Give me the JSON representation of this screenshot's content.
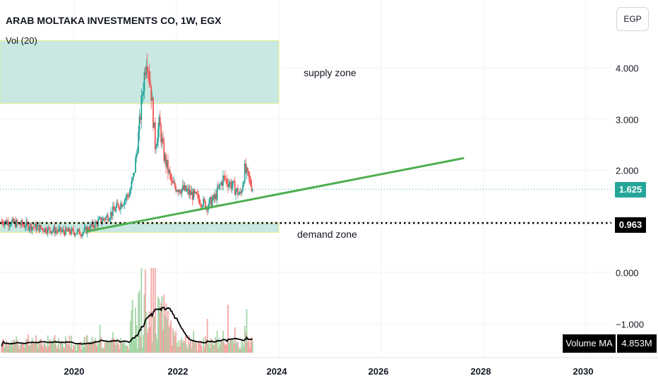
{
  "header": {
    "title": "ARAB MOLTAKA INVESTMENTS CO, 1W, EGX",
    "indicator": "Vol (20)",
    "currency_button": "EGP"
  },
  "colors": {
    "up": "#26a69a",
    "down": "#ef5350",
    "zone_fill": "#c8e8e1",
    "zone_border": "#e8ed8a",
    "trendline": "#4caf50",
    "level_line": "#000000",
    "last_price_tag": "#26a69a",
    "level_tag": "#000000"
  },
  "chart_data": [
    {
      "type": "candlestick",
      "title": "ARAB MOLTAKA INVESTMENTS CO, 1W, EGX",
      "y_axis": {
        "ticks": [
          "4.000",
          "3.000",
          "2.000",
          "0.000",
          "−1.000"
        ],
        "tick_values": [
          4,
          3,
          2,
          0,
          -1
        ]
      },
      "x_axis": {
        "ticks": [
          "2020",
          "2022",
          "2024",
          "2026",
          "2028",
          "2030"
        ]
      },
      "grid": true,
      "last_price": "1.625",
      "marked_level": "0.963",
      "price_path": [
        [
          "2018-08",
          1.0
        ],
        [
          "2019-01",
          0.93
        ],
        [
          "2019-06",
          0.85
        ],
        [
          "2019-10",
          0.8
        ],
        [
          "2020-03",
          0.78
        ],
        [
          "2020-06",
          0.95
        ],
        [
          "2020-09",
          1.1
        ],
        [
          "2020-12",
          1.35
        ],
        [
          "2021-02",
          1.55
        ],
        [
          "2021-03",
          1.9
        ],
        [
          "2021-04",
          2.6
        ],
        [
          "2021-05",
          3.5
        ],
        [
          "2021-06",
          4.3
        ],
        [
          "2021-07",
          3.6
        ],
        [
          "2021-08",
          2.5
        ],
        [
          "2021-09",
          2.9
        ],
        [
          "2021-10",
          2.3
        ],
        [
          "2021-12",
          1.7
        ],
        [
          "2022-03",
          1.6
        ],
        [
          "2022-06",
          1.45
        ],
        [
          "2022-08",
          1.3
        ],
        [
          "2022-10",
          1.45
        ],
        [
          "2022-12",
          1.85
        ],
        [
          "2023-02",
          1.7
        ],
        [
          "2023-04",
          1.5
        ],
        [
          "2023-05",
          2.0
        ],
        [
          "2023-07",
          1.625
        ]
      ],
      "annotations": {
        "zones": [
          {
            "label": "supply zone",
            "from_year": 2018.6,
            "to_year": 2024.0,
            "low": 3.3,
            "high": 4.53
          },
          {
            "label": "demand zone",
            "from_year": 2018.6,
            "to_year": 2024.0,
            "low": 0.78,
            "high": 0.97
          }
        ],
        "trendline": {
          "from": {
            "year": 2020.25,
            "price": 0.8
          },
          "to": {
            "year": 2027.6,
            "price": 2.23
          }
        }
      }
    },
    {
      "type": "bar",
      "series": [
        {
          "name": "Volume MA",
          "last_value": "4.853M"
        }
      ],
      "note_label": "Volume MA"
    }
  ],
  "volume_box": {
    "label": "Volume MA",
    "value": "4.853M"
  },
  "zone_labels": {
    "supply": "supply zone",
    "demand": "demand zone"
  }
}
